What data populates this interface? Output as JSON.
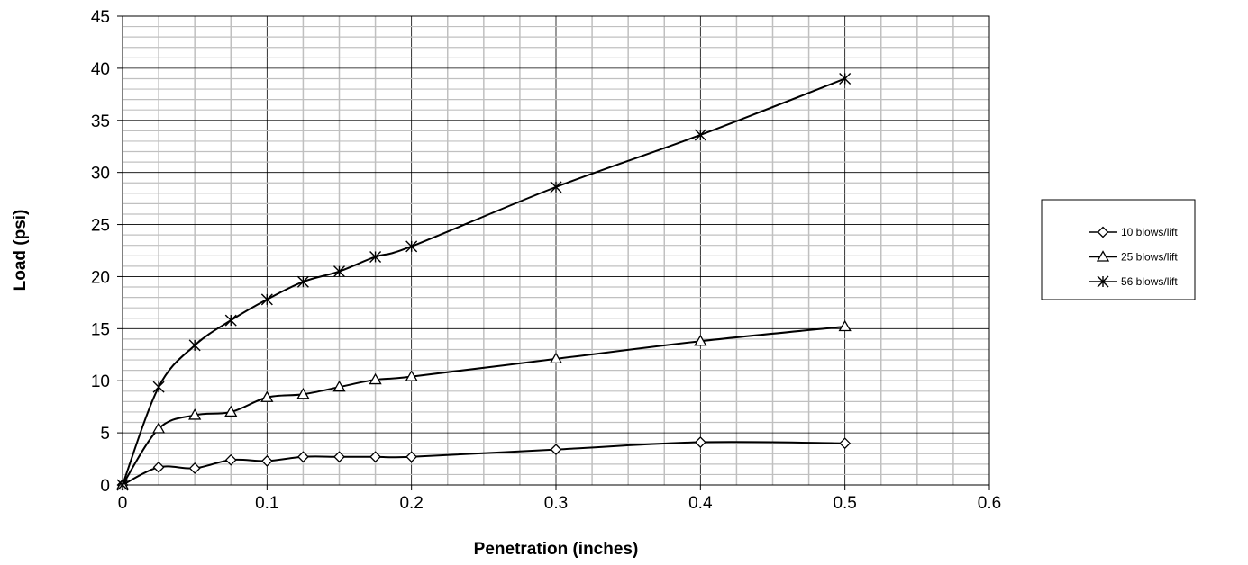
{
  "chart_data": {
    "type": "line",
    "title": "",
    "xlabel": "Penetration (inches)",
    "ylabel": "Load (psi)",
    "xlim": [
      0,
      0.6
    ],
    "ylim": [
      0,
      45
    ],
    "x_ticks": [
      "0",
      "0.1",
      "0.2",
      "0.3",
      "0.4",
      "0.5",
      "0.6"
    ],
    "y_ticks": [
      "0",
      "5",
      "10",
      "15",
      "20",
      "25",
      "30",
      "35",
      "40",
      "45"
    ],
    "x_minor_step": 0.025,
    "y_minor_step": 1,
    "grid": true,
    "legend_position": "right",
    "x": [
      0,
      0.025,
      0.05,
      0.075,
      0.1,
      0.125,
      0.15,
      0.175,
      0.2,
      0.3,
      0.4,
      0.5
    ],
    "series": [
      {
        "name": "10 blows/lift",
        "marker": "diamond",
        "values": [
          0,
          1.7,
          1.6,
          2.4,
          2.3,
          2.7,
          2.7,
          2.7,
          2.7,
          3.4,
          4.1,
          4.0
        ]
      },
      {
        "name": "25 blows/lift",
        "marker": "triangle",
        "values": [
          0,
          5.4,
          6.7,
          7.0,
          8.4,
          8.7,
          9.4,
          10.1,
          10.4,
          12.1,
          13.8,
          15.2
        ]
      },
      {
        "name": "56 blows/lift",
        "marker": "star",
        "values": [
          0,
          9.4,
          13.4,
          15.8,
          17.8,
          19.5,
          20.5,
          21.9,
          22.9,
          28.6,
          33.6,
          39.0
        ]
      }
    ],
    "colors": {
      "line": "#000000",
      "major_grid": "#000000",
      "minor_grid": "#c0c0c0",
      "background": "#ffffff"
    }
  }
}
